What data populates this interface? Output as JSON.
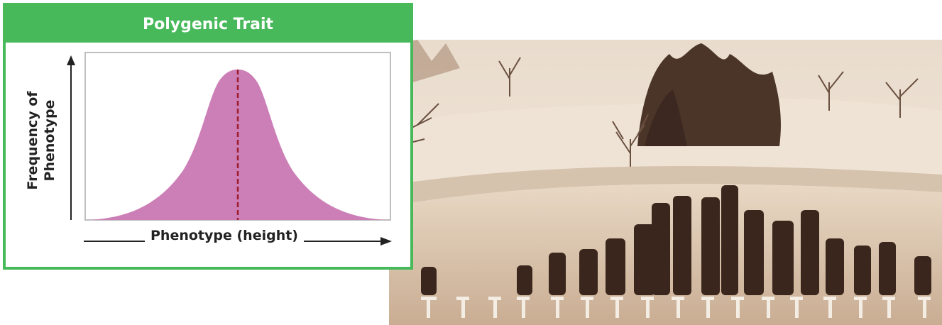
{
  "card": {
    "title": "Polygenic Trait",
    "y_label_line1": "Frequency of",
    "y_label_line2": "Phenotype",
    "x_label": "Phenotype (height)"
  },
  "colors": {
    "border": "#47b95b",
    "curve_fill": "#cc7fb6",
    "mean_line": "#9b1c2e"
  },
  "photo": {
    "description": "sepia-photo-of-students-arranged-by-height"
  }
}
